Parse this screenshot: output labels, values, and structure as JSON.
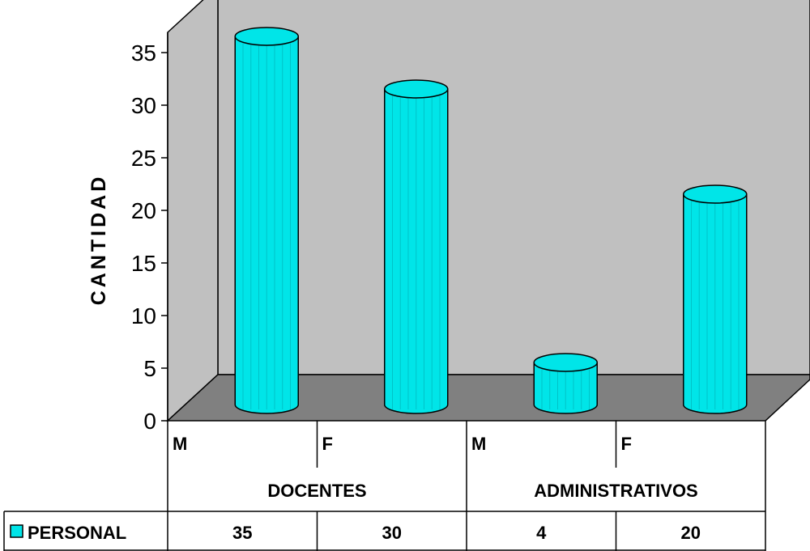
{
  "chart_data": {
    "type": "bar",
    "style": "3d-cylinder",
    "ylabel": "CANTIDAD",
    "ylim": [
      0,
      35
    ],
    "yticks": [
      "0",
      "5",
      "10",
      "15",
      "20",
      "25",
      "30",
      "35"
    ],
    "categories": [
      {
        "sub": "M",
        "group": "DOCENTES"
      },
      {
        "sub": "F",
        "group": "DOCENTES"
      },
      {
        "sub": "M",
        "group": "ADMINISTRATIVOS"
      },
      {
        "sub": "F",
        "group": "ADMINISTRATIVOS"
      }
    ],
    "groups": [
      "DOCENTES",
      "ADMINISTRATIVOS"
    ],
    "series": [
      {
        "name": "PERSONAL",
        "values": [
          35,
          30,
          4,
          20
        ],
        "color": "#00e5e8"
      }
    ],
    "colors": {
      "wall": "#c0c0c0",
      "floor": "#808080",
      "bar": "#00e5e8"
    },
    "grid": false,
    "legend": "data-table"
  }
}
